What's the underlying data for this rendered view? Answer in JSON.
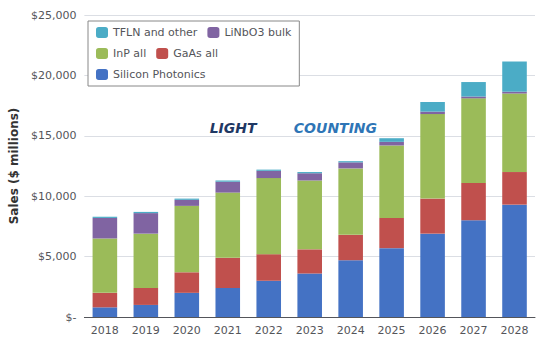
{
  "chart_data": {
    "type": "bar",
    "stacked": true,
    "categories": [
      "2018",
      "2019",
      "2020",
      "2021",
      "2022",
      "2023",
      "2024",
      "2025",
      "2026",
      "2027",
      "2028"
    ],
    "series": [
      {
        "name": "Silicon Photonics",
        "color": "#4472C4",
        "values": [
          800,
          1000,
          2000,
          2400,
          3000,
          3600,
          4700,
          5700,
          6900,
          8000,
          9300
        ]
      },
      {
        "name": "GaAs all",
        "color": "#C0504D",
        "values": [
          1200,
          1400,
          1700,
          2500,
          2200,
          2000,
          2100,
          2500,
          2900,
          3100,
          2700
        ]
      },
      {
        "name": "InP all",
        "color": "#9BBB59",
        "values": [
          4500,
          4500,
          5500,
          5400,
          6300,
          5700,
          5500,
          6000,
          7000,
          7000,
          6500
        ]
      },
      {
        "name": "LiNbO3 bulk",
        "color": "#8064A2",
        "values": [
          1700,
          1700,
          500,
          900,
          600,
          600,
          500,
          300,
          200,
          150,
          150
        ]
      },
      {
        "name": "TFLN and other",
        "color": "#4BACC6",
        "values": [
          100,
          100,
          100,
          100,
          100,
          100,
          100,
          300,
          800,
          1200,
          2500
        ]
      }
    ],
    "ylabel": "Sales ($ millions)",
    "ylim": [
      0,
      25000
    ],
    "yticks": [
      {
        "value": 0,
        "label": "$-"
      },
      {
        "value": 5000,
        "label": "$5,000"
      },
      {
        "value": 10000,
        "label": "$10,000"
      },
      {
        "value": 15000,
        "label": "$15,000"
      },
      {
        "value": 20000,
        "label": "$20,000"
      },
      {
        "value": 25000,
        "label": "$25,000"
      }
    ],
    "grid": true,
    "legend": "upper left",
    "annotations": [
      {
        "text": "LIGHT",
        "color": "#1F3864"
      },
      {
        "text": "COUNTING",
        "color": "#2E75B6"
      }
    ]
  }
}
